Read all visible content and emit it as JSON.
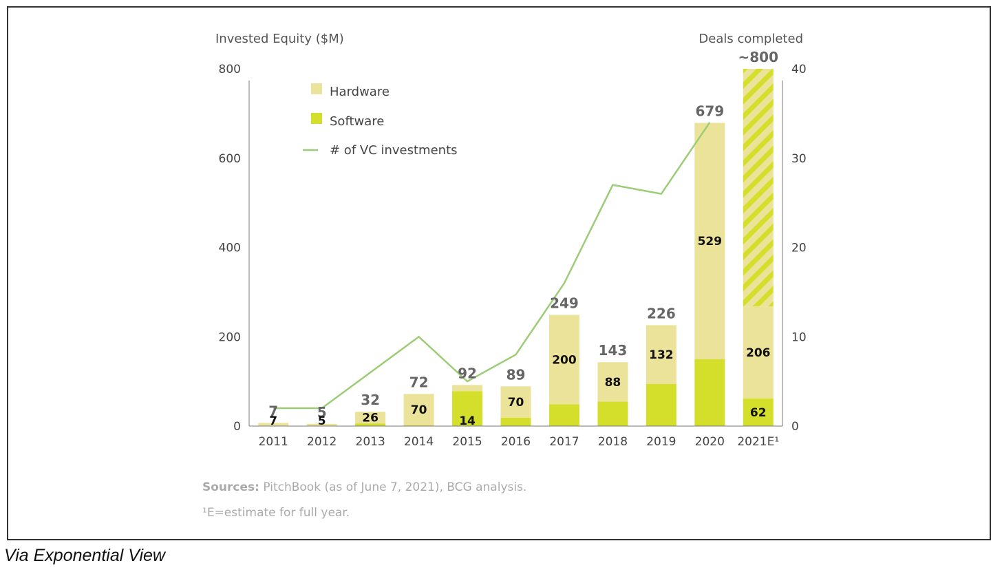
{
  "caption": "Via Exponential View",
  "chart_data": {
    "type": "bar",
    "stacked": true,
    "categories": [
      "2011",
      "2012",
      "2013",
      "2014",
      "2015",
      "2016",
      "2017",
      "2018",
      "2019",
      "2020",
      "2021E¹"
    ],
    "series": [
      {
        "name": "Software",
        "values": [
          0,
          0,
          6,
          2,
          78,
          19,
          49,
          55,
          94,
          150,
          62
        ],
        "color": "#d3df2a"
      },
      {
        "name": "Hardware",
        "values": [
          7,
          5,
          26,
          70,
          14,
          70,
          200,
          88,
          132,
          529,
          206
        ],
        "color": "#ece39b"
      }
    ],
    "estimate_remainder": {
      "category": "2021E¹",
      "value": 532,
      "pattern": "diagonal stripes"
    },
    "totals": [
      "7",
      "5",
      "32",
      "72",
      "92",
      "89",
      "249",
      "143",
      "226",
      "679",
      "~800"
    ],
    "inner_labels": [
      "7",
      "5",
      "26",
      "70",
      "14",
      "70",
      "200",
      "88",
      "132",
      "529",
      "206"
    ],
    "software_labels": [
      "",
      "",
      "",
      "",
      "",
      "",
      "",
      "",
      "",
      "",
      "62"
    ],
    "line": {
      "name": "# of VC investments",
      "axis": "right",
      "categories": [
        "2011",
        "2012",
        "2013",
        "2014",
        "2015",
        "2016",
        "2017",
        "2018",
        "2019",
        "2020"
      ],
      "values": [
        2,
        2,
        6,
        10,
        5,
        8,
        16,
        27,
        26,
        34
      ],
      "color": "#9ccc75"
    },
    "y_left": {
      "label": "Invested Equity ($M)",
      "ylim": [
        0,
        800
      ],
      "ticks": [
        "0",
        "200",
        "400",
        "600",
        "800"
      ]
    },
    "y_right": {
      "label": "Deals completed",
      "ylim": [
        0,
        40
      ],
      "ticks": [
        "0",
        "10",
        "20",
        "30",
        "40"
      ]
    },
    "legend": {
      "placement": "top-left",
      "items": [
        {
          "label": "Hardware",
          "kind": "box",
          "color": "#ece39b"
        },
        {
          "label": "Software",
          "kind": "box",
          "color": "#d3df2a"
        },
        {
          "label": "# of VC investments",
          "kind": "line",
          "color": "#9ccc75"
        }
      ]
    },
    "grid": false
  },
  "notes": {
    "sources_bold": "Sources:",
    "sources_text": " PitchBook (as of June 7, 2021), BCG analysis.",
    "footnote": "¹E=estimate for full year."
  }
}
